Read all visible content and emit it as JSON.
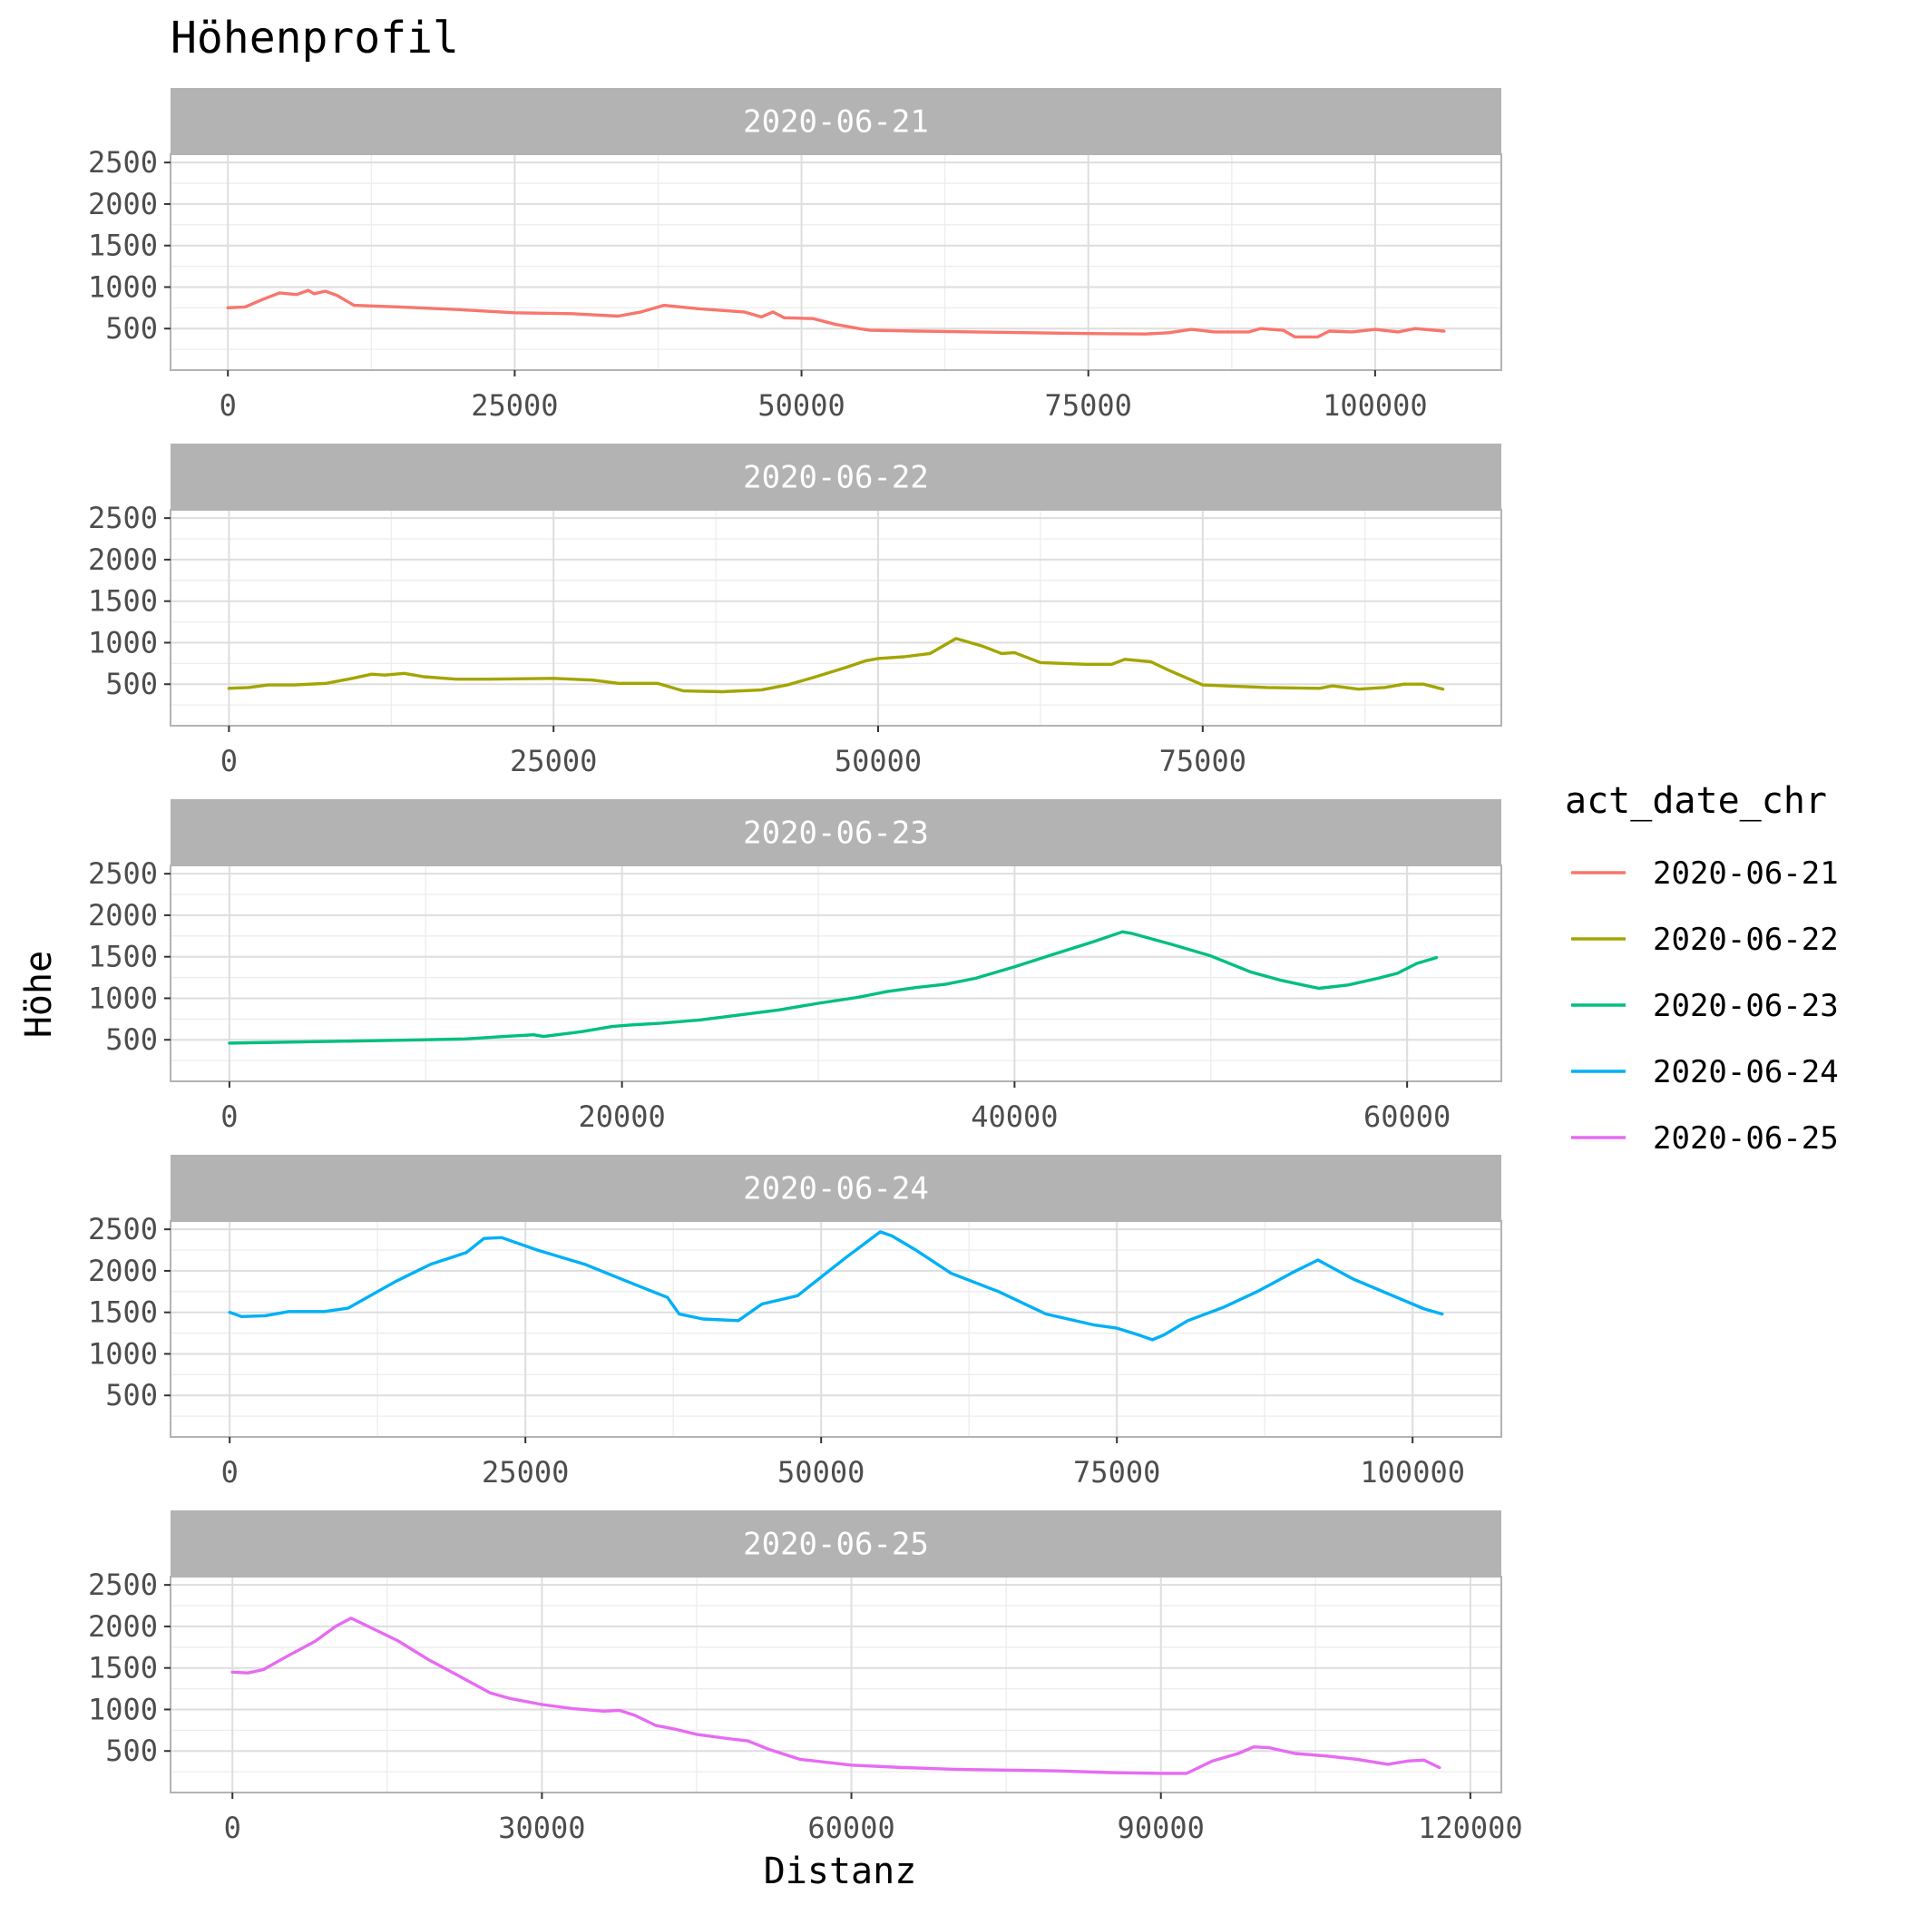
{
  "title": "Höhenprofil",
  "xlabel": "Distanz",
  "ylabel": "Höhe",
  "legend": {
    "title": "act_date_chr",
    "position": "right",
    "items": [
      "2020-06-21",
      "2020-06-22",
      "2020-06-23",
      "2020-06-24",
      "2020-06-25"
    ]
  },
  "colors": {
    "2020-06-21": "#F8766D",
    "2020-06-22": "#A3A500",
    "2020-06-23": "#00BF7D",
    "2020-06-24": "#00B0F6",
    "2020-06-25": "#E76BF3",
    "strip": "#B3B3B3",
    "grid": "#DEDEDE",
    "panel_border": "#B3B3B3"
  },
  "chart_data": {
    "type": "line",
    "title": "Höhenprofil",
    "xlabel": "Distanz",
    "ylabel": "Höhe",
    "grid": true,
    "facets": [
      {
        "label": "2020-06-21",
        "xlim": [
          -5000,
          111000
        ],
        "ylim": [
          0,
          2600
        ],
        "xticks": [
          0,
          25000,
          50000,
          75000,
          100000
        ],
        "yticks": [
          500,
          1000,
          1500,
          2000,
          2500
        ],
        "x": [
          0,
          1500,
          3000,
          4500,
          6000,
          7000,
          7500,
          8500,
          9500,
          11000,
          15000,
          20000,
          25000,
          30000,
          34000,
          36000,
          38000,
          41000,
          45000,
          46500,
          47500,
          48500,
          51000,
          53000,
          55000,
          56000,
          60000,
          65000,
          70000,
          75000,
          80000,
          82000,
          84000,
          86000,
          89000,
          90000,
          92000,
          93000,
          95000,
          96000,
          98000,
          100000,
          102000,
          103500,
          106000
        ],
        "y": [
          750,
          760,
          850,
          930,
          910,
          960,
          920,
          950,
          900,
          780,
          760,
          730,
          690,
          680,
          650,
          700,
          780,
          740,
          700,
          640,
          700,
          630,
          620,
          550,
          500,
          480,
          470,
          460,
          450,
          440,
          435,
          450,
          490,
          460,
          460,
          500,
          480,
          400,
          400,
          470,
          460,
          490,
          460,
          500,
          470
        ]
      },
      {
        "label": "2020-06-22",
        "xlim": [
          -4500,
          98000
        ],
        "ylim": [
          0,
          2600
        ],
        "xticks": [
          0,
          25000,
          50000,
          75000
        ],
        "yticks": [
          500,
          1000,
          1500,
          2000,
          2500
        ],
        "x": [
          0,
          1500,
          3000,
          5000,
          7500,
          9500,
          11000,
          12000,
          13500,
          15000,
          17500,
          20000,
          25000,
          28000,
          30000,
          33000,
          35000,
          38000,
          41000,
          43000,
          45000,
          47500,
          49000,
          50000,
          52000,
          54000,
          56000,
          58000,
          59500,
          60500,
          62500,
          66000,
          68000,
          69000,
          71000,
          72500,
          75000,
          80000,
          84000,
          85000,
          87000,
          89000,
          90500,
          92000,
          93500
        ],
        "y": [
          450,
          460,
          490,
          490,
          510,
          570,
          620,
          610,
          630,
          590,
          560,
          560,
          570,
          550,
          510,
          510,
          420,
          410,
          430,
          490,
          580,
          700,
          780,
          810,
          830,
          870,
          1050,
          960,
          870,
          880,
          760,
          740,
          740,
          800,
          770,
          660,
          490,
          460,
          450,
          480,
          440,
          460,
          500,
          500,
          440
        ]
      },
      {
        "label": "2020-06-23",
        "xlim": [
          -3000,
          64800
        ],
        "ylim": [
          0,
          2600
        ],
        "xticks": [
          0,
          20000,
          40000,
          60000
        ],
        "yticks": [
          500,
          1000,
          1500,
          2000,
          2500
        ],
        "x": [
          0,
          5000,
          10000,
          12000,
          14000,
          15500,
          16000,
          18000,
          19500,
          20500,
          22000,
          24000,
          26000,
          28000,
          30000,
          32000,
          33500,
          35000,
          36500,
          38000,
          40000,
          42000,
          44000,
          45500,
          46000,
          48000,
          50000,
          52000,
          53500,
          54500,
          55500,
          57000,
          58500,
          59500,
          60500,
          61500
        ],
        "y": [
          460,
          480,
          500,
          510,
          540,
          560,
          540,
          600,
          660,
          680,
          700,
          740,
          800,
          860,
          940,
          1010,
          1080,
          1130,
          1170,
          1240,
          1380,
          1530,
          1680,
          1800,
          1780,
          1650,
          1510,
          1320,
          1220,
          1170,
          1120,
          1160,
          1240,
          1300,
          1420,
          1490
        ]
      },
      {
        "label": "2020-06-24",
        "xlim": [
          -5000,
          107500
        ],
        "ylim": [
          0,
          2600
        ],
        "xticks": [
          0,
          25000,
          50000,
          75000,
          100000
        ],
        "yticks": [
          500,
          1000,
          1500,
          2000,
          2500
        ],
        "x": [
          0,
          1000,
          3000,
          5000,
          8000,
          10000,
          14000,
          17000,
          20000,
          21500,
          23000,
          26000,
          30000,
          34000,
          37000,
          38000,
          40000,
          43000,
          45000,
          48000,
          52000,
          55000,
          56000,
          58000,
          61000,
          65000,
          69000,
          73000,
          75000,
          77000,
          78000,
          79000,
          81000,
          84000,
          87000,
          90000,
          92000,
          95000,
          98000,
          101000,
          102500
        ],
        "y": [
          1500,
          1450,
          1460,
          1510,
          1510,
          1550,
          1870,
          2080,
          2220,
          2390,
          2400,
          2250,
          2080,
          1850,
          1680,
          1480,
          1420,
          1400,
          1600,
          1700,
          2150,
          2470,
          2420,
          2250,
          1970,
          1750,
          1480,
          1350,
          1310,
          1220,
          1170,
          1230,
          1400,
          1560,
          1760,
          1990,
          2130,
          1900,
          1720,
          1540,
          1480
        ]
      },
      {
        "label": "2020-06-25",
        "xlim": [
          -6000,
          123000
        ],
        "ylim": [
          0,
          2600
        ],
        "xticks": [
          0,
          30000,
          60000,
          90000,
          120000
        ],
        "yticks": [
          500,
          1000,
          1500,
          2000,
          2500
        ],
        "x": [
          0,
          1500,
          3000,
          5000,
          8000,
          10000,
          11500,
          13000,
          16000,
          19000,
          22000,
          25000,
          27000,
          30000,
          33000,
          36000,
          37500,
          39000,
          41000,
          43000,
          45000,
          48000,
          50000,
          52000,
          55000,
          60000,
          65000,
          70000,
          75000,
          80000,
          85000,
          90000,
          92500,
          95000,
          97500,
          99000,
          100500,
          103000,
          106000,
          109000,
          112000,
          114000,
          115500,
          117000
        ],
        "y": [
          1450,
          1440,
          1480,
          1620,
          1820,
          2000,
          2100,
          2010,
          1830,
          1600,
          1400,
          1200,
          1130,
          1060,
          1010,
          980,
          990,
          930,
          810,
          760,
          700,
          650,
          620,
          520,
          400,
          330,
          300,
          280,
          270,
          260,
          240,
          230,
          230,
          380,
          470,
          550,
          540,
          470,
          440,
          400,
          340,
          380,
          390,
          300
        ]
      }
    ]
  }
}
